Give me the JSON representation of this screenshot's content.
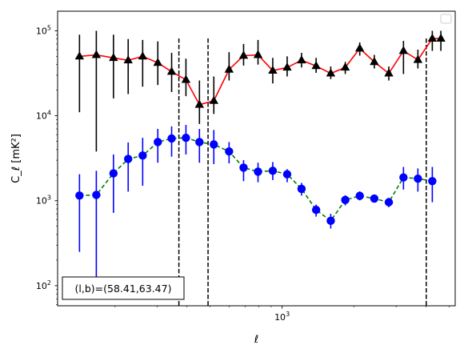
{
  "chart_data": {
    "type": "line",
    "title": "",
    "xlabel": "ℓ",
    "ylabel": "C_ℓ  [mK²]",
    "xscale": "log",
    "yscale": "log",
    "xlim": [
      115,
      5300
    ],
    "ylim": [
      58,
      170000
    ],
    "grid": false,
    "legend_placement": "top-right",
    "x_ticks": [
      {
        "value": 1000,
        "base": "10",
        "exp": "3"
      }
    ],
    "y_ticks": [
      {
        "value": 100,
        "base": "10",
        "exp": "2"
      },
      {
        "value": 1000,
        "base": "10",
        "exp": "3"
      },
      {
        "value": 10000,
        "base": "10",
        "exp": "4"
      },
      {
        "value": 100000,
        "base": "10",
        "exp": "5"
      }
    ],
    "vlines": [
      370,
      490,
      4010
    ],
    "annotation": "(l,b)=(58.41,63.47)",
    "series": [
      {
        "color": "#ff0000",
        "marker_color": "#000000",
        "marker": "triangle",
        "line_style": "solid",
        "x": [
          142,
          167,
          197,
          227,
          261,
          302,
          345,
          396,
          451,
          518,
          600,
          690,
          793,
          914,
          1050,
          1206,
          1388,
          1598,
          1838,
          2113,
          2431,
          2796,
          3220,
          3700,
          4251,
          4617
        ],
        "y": [
          50000,
          52000,
          48000,
          45000,
          50000,
          42000,
          33000,
          26500,
          13500,
          15000,
          35000,
          51000,
          52000,
          34000,
          37000,
          45000,
          38500,
          31500,
          37000,
          62000,
          43000,
          31500,
          58000,
          45500,
          81000,
          81000
        ],
        "err_low": [
          11000,
          3800,
          16000,
          18000,
          22000,
          23000,
          19000,
          17000,
          8000,
          10500,
          26000,
          39000,
          40000,
          24000,
          29000,
          37000,
          32000,
          27000,
          31000,
          51000,
          36000,
          26000,
          31000,
          36000,
          58000,
          58000
        ],
        "err_high": [
          90000,
          100000,
          90000,
          80000,
          78000,
          75000,
          55000,
          47000,
          26000,
          29000,
          56000,
          70000,
          78000,
          48000,
          50000,
          55000,
          48000,
          38000,
          43000,
          73000,
          52000,
          38000,
          76000,
          60000,
          100000,
          100000
        ]
      },
      {
        "color": "#008000",
        "marker_color": "#0000ff",
        "marker": "circle",
        "line_style": "dashed",
        "x": [
          142,
          167,
          197,
          227,
          261,
          302,
          345,
          396,
          451,
          518,
          600,
          690,
          793,
          914,
          1050,
          1206,
          1388,
          1598,
          1838,
          2113,
          2431,
          2796,
          3220,
          3700,
          4251
        ],
        "y": [
          1150,
          1170,
          2100,
          3100,
          3400,
          4900,
          5400,
          5500,
          4900,
          4600,
          3800,
          2450,
          2200,
          2250,
          2050,
          1380,
          780,
          580,
          1020,
          1140,
          1060,
          960,
          1880,
          1820,
          1700
        ],
        "err_low": [
          250,
          110,
          720,
          1280,
          1500,
          2800,
          3300,
          3500,
          2800,
          2700,
          2750,
          1700,
          1650,
          1750,
          1650,
          1150,
          650,
          470,
          880,
          1010,
          960,
          840,
          1350,
          1280,
          960
        ],
        "err_high": [
          2050,
          2250,
          3500,
          4850,
          5500,
          7000,
          7500,
          7800,
          7000,
          6800,
          4900,
          3000,
          2800,
          2850,
          2350,
          1620,
          900,
          700,
          1160,
          1290,
          1160,
          1080,
          2500,
          2400,
          2500
        ]
      }
    ]
  }
}
